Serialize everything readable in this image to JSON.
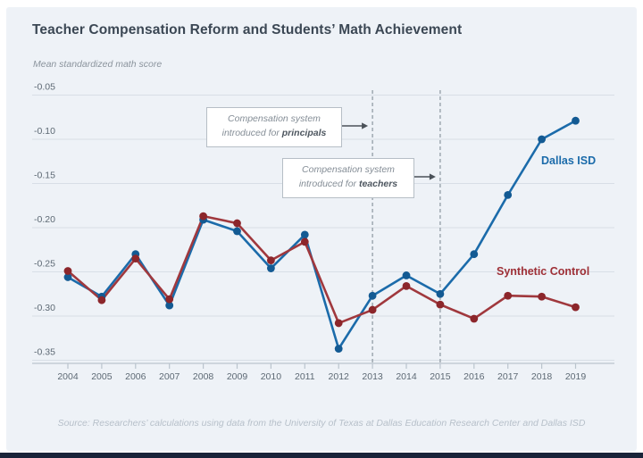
{
  "chart_data": {
    "type": "line",
    "title": "Teacher Compensation Reform and Students’ Math Achievement",
    "ylabel": "Mean standardized math score",
    "xlabel": "",
    "source": "Source: Researchers’ calculations using data from the University of Texas at Dallas Education Research Center and Dallas ISD",
    "x": [
      2004,
      2005,
      2006,
      2007,
      2008,
      2009,
      2010,
      2011,
      2012,
      2013,
      2014,
      2015,
      2016,
      2017,
      2018,
      2019
    ],
    "ylim": [
      -0.35,
      -0.05
    ],
    "yticks": [
      -0.05,
      -0.1,
      -0.15,
      -0.2,
      -0.25,
      -0.3,
      -0.35
    ],
    "grid": true,
    "legend_position": "inline-labels",
    "vlines": [
      {
        "x": 2013,
        "style": "dashed"
      },
      {
        "x": 2015,
        "style": "dashed"
      }
    ],
    "series": [
      {
        "name": "Dallas ISD",
        "color": "#1b6baa",
        "dot_color": "#135a93",
        "values": [
          -0.256,
          -0.278,
          -0.23,
          -0.288,
          -0.191,
          -0.204,
          -0.246,
          -0.208,
          -0.337,
          -0.277,
          -0.254,
          -0.275,
          -0.23,
          -0.163,
          -0.1,
          -0.079
        ]
      },
      {
        "name": "Synthetic Control",
        "color": "#a0383d",
        "dot_color": "#8c262b",
        "values": [
          -0.249,
          -0.282,
          -0.235,
          -0.281,
          -0.187,
          -0.195,
          -0.237,
          -0.216,
          -0.308,
          -0.293,
          -0.266,
          -0.287,
          -0.303,
          -0.277,
          -0.278,
          -0.29
        ]
      }
    ],
    "annotations": [
      {
        "line1": "Compensation system",
        "line2_prefix": "introduced for ",
        "line2_bold": "principals",
        "target_year": 2013
      },
      {
        "line1": "Compensation system",
        "line2_prefix": "introduced for ",
        "line2_bold": "teachers",
        "target_year": 2015
      }
    ]
  },
  "colors": {
    "card_background": "#eef2f7",
    "bottom_bar": "#1a2439",
    "gridline": "#d8dee6",
    "axis": "#bac4cd",
    "dashed_line": "#929da6",
    "arrow": "#4a5158"
  }
}
